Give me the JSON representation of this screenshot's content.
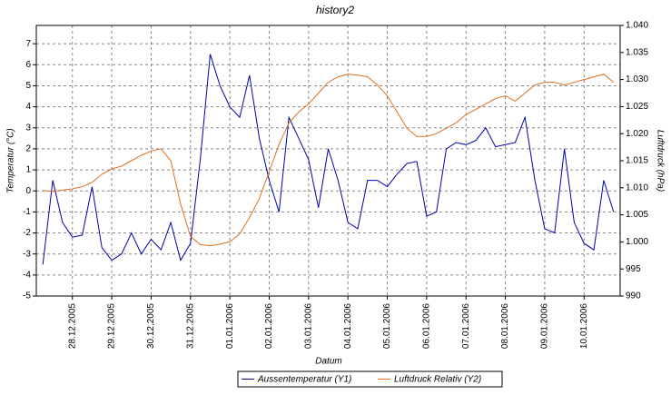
{
  "chart_data": {
    "type": "line",
    "title": "history2",
    "x_label": "Datum",
    "y_label": "Temperatur (°C)",
    "y2_label": "Luftdruck (hPa)",
    "xlim": [
      "2005-12-27T02:00",
      "2006-01-10T22:00"
    ],
    "xticks": [
      {
        "value": "2005-12-28T00:00",
        "label": "28.12.2005"
      },
      {
        "value": "2005-12-29T00:00",
        "label": "29.12.2005"
      },
      {
        "value": "2005-12-30T00:00",
        "label": "30.12.2005"
      },
      {
        "value": "2005-12-31T00:00",
        "label": "31.12.2005"
      },
      {
        "value": "2006-01-01T00:00",
        "label": "01.01.2006"
      },
      {
        "value": "2006-01-02T00:00",
        "label": "02.01.2006"
      },
      {
        "value": "2006-01-03T00:00",
        "label": "03.01.2006"
      },
      {
        "value": "2006-01-04T00:00",
        "label": "04.01.2006"
      },
      {
        "value": "2006-01-05T00:00",
        "label": "05.01.2006"
      },
      {
        "value": "2006-01-06T00:00",
        "label": "06.01.2006"
      },
      {
        "value": "2006-01-07T00:00",
        "label": "07.01.2006"
      },
      {
        "value": "2006-01-08T00:00",
        "label": "08.01.2006"
      },
      {
        "value": "2006-01-09T00:00",
        "label": "09.01.2006"
      },
      {
        "value": "2006-01-10T00:00",
        "label": "10.01.2006"
      }
    ],
    "ylim": [
      -5,
      7.87
    ],
    "yticks": [
      -5,
      -4,
      -3,
      -2,
      -1,
      0,
      1,
      2,
      3,
      4,
      5,
      6,
      7
    ],
    "y2lim": [
      990,
      1040
    ],
    "y2ticks": [
      990,
      995,
      {
        "value": 1000,
        "label": "1.000"
      },
      {
        "value": 1005,
        "label": "1.005"
      },
      {
        "value": 1010,
        "label": "1.010"
      },
      {
        "value": 1015,
        "label": "1.015"
      },
      {
        "value": 1020,
        "label": "1.020"
      },
      {
        "value": 1025,
        "label": "1.025"
      },
      {
        "value": 1030,
        "label": "1.030"
      },
      {
        "value": 1035,
        "label": "1.035"
      },
      {
        "value": 1040,
        "label": "1.040"
      }
    ],
    "grid": true,
    "x": [
      "2005-12-27T06:00",
      "2005-12-27T12:00",
      "2005-12-27T18:00",
      "2005-12-28T00:00",
      "2005-12-28T06:00",
      "2005-12-28T12:00",
      "2005-12-28T18:00",
      "2005-12-29T00:00",
      "2005-12-29T06:00",
      "2005-12-29T12:00",
      "2005-12-29T18:00",
      "2005-12-30T00:00",
      "2005-12-30T06:00",
      "2005-12-30T12:00",
      "2005-12-30T18:00",
      "2005-12-31T00:00",
      "2005-12-31T06:00",
      "2005-12-31T12:00",
      "2005-12-31T18:00",
      "2006-01-01T00:00",
      "2006-01-01T06:00",
      "2006-01-01T12:00",
      "2006-01-01T18:00",
      "2006-01-02T00:00",
      "2006-01-02T06:00",
      "2006-01-02T12:00",
      "2006-01-02T18:00",
      "2006-01-03T00:00",
      "2006-01-03T06:00",
      "2006-01-03T12:00",
      "2006-01-03T18:00",
      "2006-01-04T00:00",
      "2006-01-04T06:00",
      "2006-01-04T12:00",
      "2006-01-04T18:00",
      "2006-01-05T00:00",
      "2006-01-05T06:00",
      "2006-01-05T12:00",
      "2006-01-05T18:00",
      "2006-01-06T00:00",
      "2006-01-06T06:00",
      "2006-01-06T12:00",
      "2006-01-06T18:00",
      "2006-01-07T00:00",
      "2006-01-07T06:00",
      "2006-01-07T12:00",
      "2006-01-07T18:00",
      "2006-01-08T00:00",
      "2006-01-08T06:00",
      "2006-01-08T12:00",
      "2006-01-08T18:00",
      "2006-01-09T00:00",
      "2006-01-09T06:00",
      "2006-01-09T12:00",
      "2006-01-09T18:00",
      "2006-01-10T00:00",
      "2006-01-10T06:00",
      "2006-01-10T12:00",
      "2006-01-10T18:00"
    ],
    "series": [
      {
        "name": "Aussentemperatur (Y1)",
        "color": "#0000aa",
        "axis": "y",
        "values": [
          -3.5,
          0.5,
          -1.5,
          -2.2,
          -2.1,
          0.2,
          -2.7,
          -3.3,
          -3.0,
          -2.0,
          -3.0,
          -2.3,
          -2.8,
          -1.5,
          -3.3,
          -2.5,
          1.5,
          6.5,
          5.0,
          4.0,
          3.5,
          5.5,
          2.5,
          0.5,
          -1.0,
          3.5,
          2.5,
          1.5,
          -0.8,
          2.0,
          0.5,
          -1.5,
          -1.8,
          0.5,
          0.5,
          0.2,
          0.8,
          1.3,
          1.4,
          -1.2,
          -1.0,
          2.0,
          2.3,
          2.2,
          2.4,
          3.0,
          2.1,
          2.2,
          2.3,
          3.5,
          0.5,
          -1.8,
          -2.0,
          2.0,
          -1.5,
          -2.5,
          -2.8,
          0.5,
          -1.0
        ]
      },
      {
        "name": "Luftdruck Relativ (Y2)",
        "color": "#e07020",
        "axis": "y2",
        "values": [
          1009.5,
          1009.3,
          1009.6,
          1009.8,
          1010.2,
          1011,
          1012.5,
          1013.5,
          1014,
          1015,
          1016,
          1016.8,
          1017.2,
          1015,
          1007,
          1001,
          999.5,
          999.3,
          999.6,
          1000,
          1001.5,
          1004.5,
          1008,
          1013,
          1018,
          1022,
          1024,
          1025.5,
          1027.5,
          1029.5,
          1030.5,
          1031,
          1030.8,
          1030.5,
          1029,
          1027,
          1024,
          1021,
          1019.5,
          1019.5,
          1020,
          1021,
          1022,
          1023.5,
          1024.5,
          1025.5,
          1026.5,
          1027,
          1026,
          1027.5,
          1029,
          1029.5,
          1029.5,
          1029,
          1029.5,
          1030,
          1030.5,
          1031,
          1029.5
        ]
      }
    ]
  }
}
